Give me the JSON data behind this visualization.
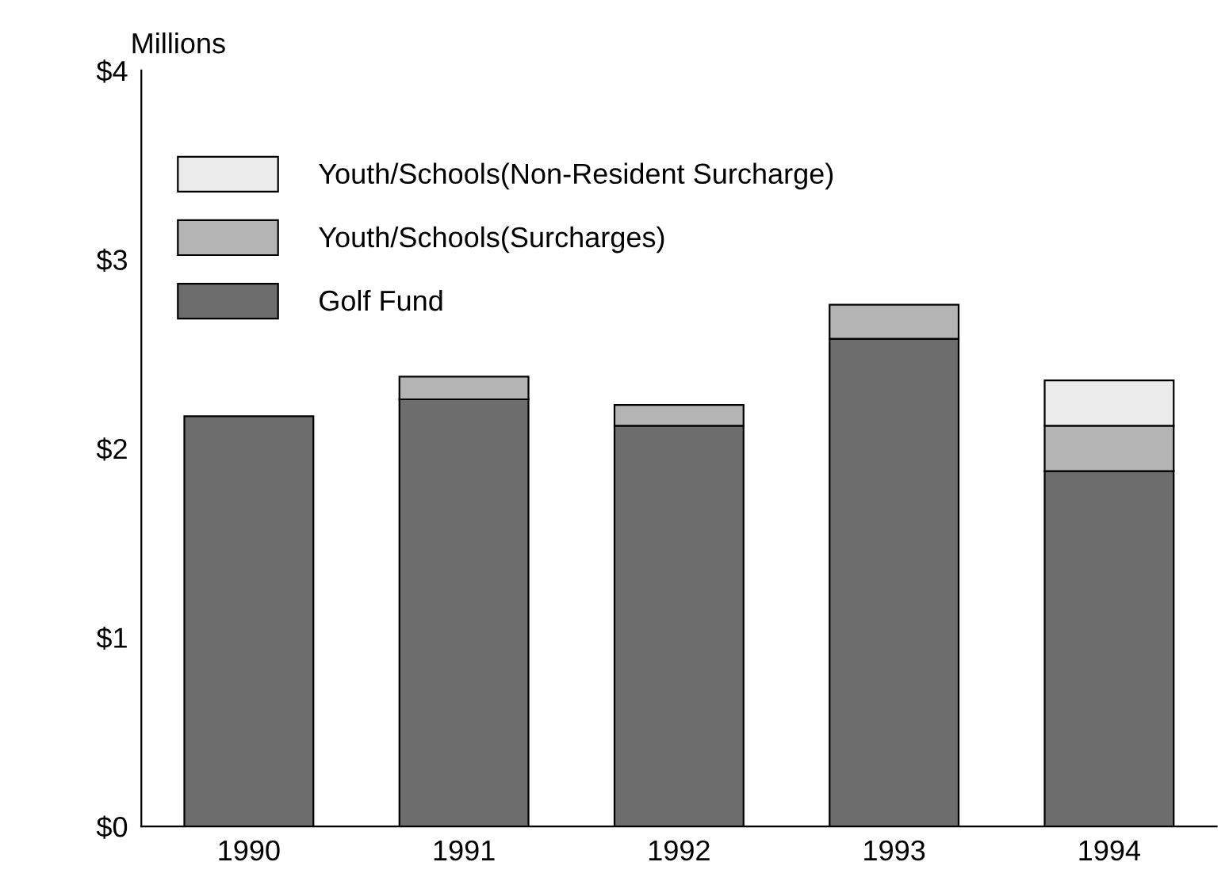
{
  "chart_data": {
    "type": "bar",
    "stacked": true,
    "ylabel": "Millions",
    "categories": [
      "1990",
      "1991",
      "1992",
      "1993",
      "1994"
    ],
    "series": [
      {
        "name": "Golf Fund",
        "color": "#6d6d6d",
        "values": [
          2.17,
          2.26,
          2.12,
          2.58,
          1.88
        ]
      },
      {
        "name": "Youth/Schools(Surcharges)",
        "color": "#b4b4b4",
        "values": [
          null,
          0.12,
          0.11,
          0.18,
          0.24
        ]
      },
      {
        "name": "Youth/Schools(Non-Resident Surcharge)",
        "color": "#ebebeb",
        "values": [
          null,
          null,
          null,
          null,
          0.24
        ]
      }
    ],
    "ylim": [
      0,
      4
    ],
    "yticks": [
      {
        "value": 0,
        "label": "$0"
      },
      {
        "value": 1,
        "label": "$1"
      },
      {
        "value": 2,
        "label": "$2"
      },
      {
        "value": 3,
        "label": "$3"
      },
      {
        "value": 4,
        "label": "$4"
      }
    ],
    "grid": false,
    "legend": "top left"
  }
}
